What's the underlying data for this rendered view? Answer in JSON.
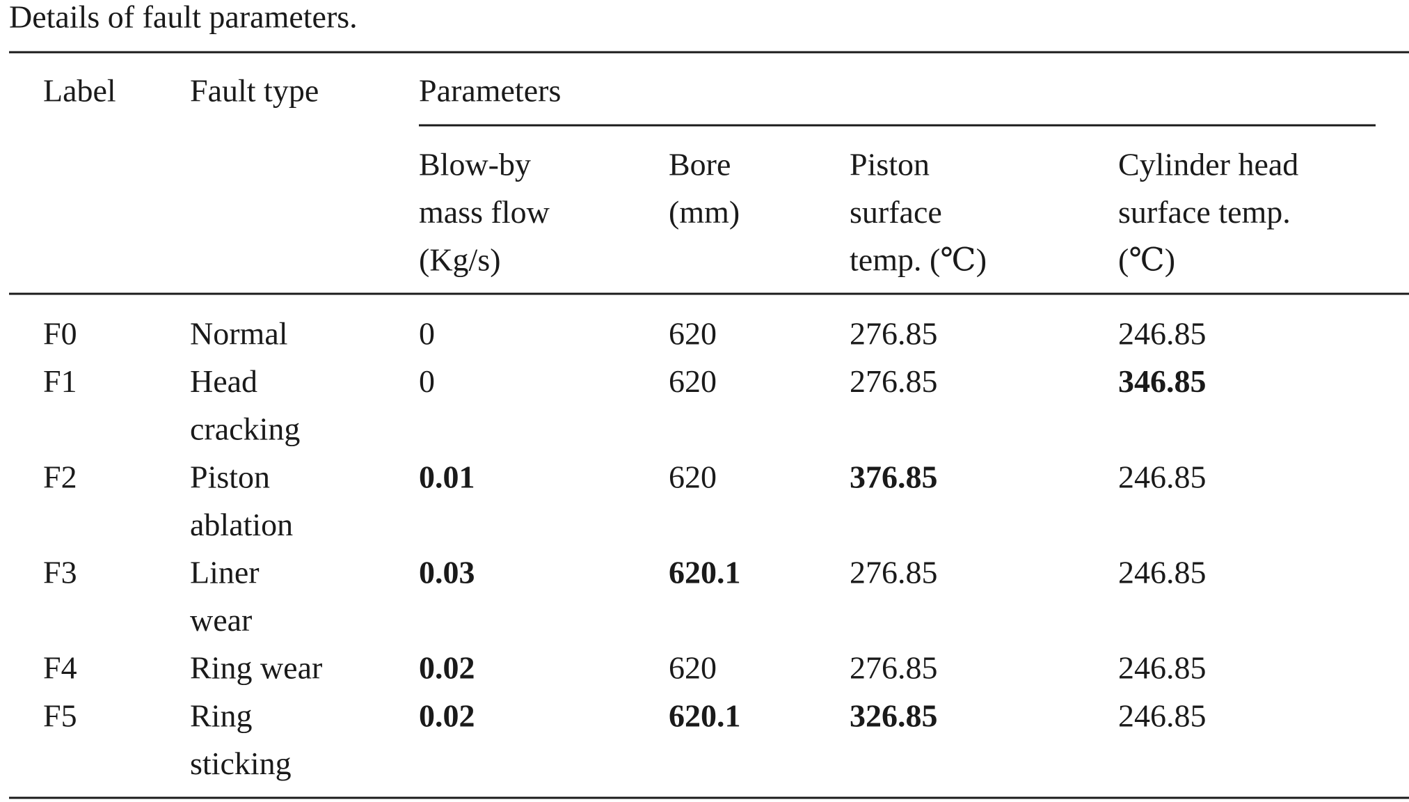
{
  "title": "Details of fault parameters.",
  "table": {
    "header": {
      "label": "Label",
      "fault_type": "Fault type",
      "group": "Parameters",
      "columns": [
        [
          "Blow-by",
          "mass flow",
          "(Kg/s)"
        ],
        [
          "Bore",
          "(mm)"
        ],
        [
          "Piston",
          "surface",
          "temp. (℃)"
        ],
        [
          "Cylinder head",
          "surface temp.",
          "(℃)"
        ]
      ]
    },
    "rows": [
      [
        {
          "text": [
            "F0"
          ]
        },
        {
          "text": [
            "Normal"
          ]
        },
        {
          "text": [
            "0"
          ]
        },
        {
          "text": [
            "620"
          ]
        },
        {
          "text": [
            "276.85"
          ]
        },
        {
          "text": [
            "246.85"
          ]
        }
      ],
      [
        {
          "text": [
            "F1"
          ]
        },
        {
          "text": [
            "Head",
            "cracking"
          ]
        },
        {
          "text": [
            "0"
          ]
        },
        {
          "text": [
            "620"
          ]
        },
        {
          "text": [
            "276.85"
          ]
        },
        {
          "text": [
            "346.85"
          ],
          "bold": true
        }
      ],
      [
        {
          "text": [
            "F2"
          ]
        },
        {
          "text": [
            "Piston",
            "ablation"
          ]
        },
        {
          "text": [
            "0.01"
          ],
          "bold": true
        },
        {
          "text": [
            "620"
          ]
        },
        {
          "text": [
            "376.85"
          ],
          "bold": true
        },
        {
          "text": [
            "246.85"
          ]
        }
      ],
      [
        {
          "text": [
            "F3"
          ]
        },
        {
          "text": [
            "Liner",
            "wear"
          ]
        },
        {
          "text": [
            "0.03"
          ],
          "bold": true
        },
        {
          "text": [
            "620.1"
          ],
          "bold": true
        },
        {
          "text": [
            "276.85"
          ]
        },
        {
          "text": [
            "246.85"
          ]
        }
      ],
      [
        {
          "text": [
            "F4"
          ]
        },
        {
          "text": [
            "Ring wear"
          ]
        },
        {
          "text": [
            "0.02"
          ],
          "bold": true
        },
        {
          "text": [
            "620"
          ]
        },
        {
          "text": [
            "276.85"
          ]
        },
        {
          "text": [
            "246.85"
          ]
        }
      ],
      [
        {
          "text": [
            "F5"
          ]
        },
        {
          "text": [
            "Ring",
            "sticking"
          ]
        },
        {
          "text": [
            "0.02"
          ],
          "bold": true
        },
        {
          "text": [
            "620.1"
          ],
          "bold": true
        },
        {
          "text": [
            "326.85"
          ],
          "bold": true
        },
        {
          "text": [
            "246.85"
          ]
        }
      ]
    ]
  }
}
